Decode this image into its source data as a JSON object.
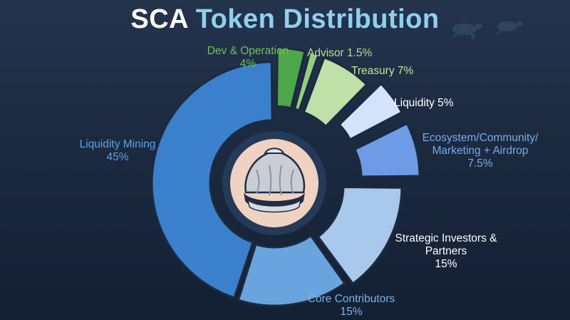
{
  "title": {
    "part1": "SCA",
    "part2": "Token Distribution"
  },
  "colors": {
    "title_white": "#ffffff",
    "title_blue": "#8fd0ef",
    "ring_dark": "#243a58",
    "center_disc": "#f0d2c2"
  },
  "chart_data": {
    "type": "pie",
    "variant": "exploded donut",
    "title": "SCA Token Distribution",
    "slices": [
      {
        "name": "Dev & Operation",
        "value": 4,
        "label": "4%",
        "color": "#4ea64a"
      },
      {
        "name": "Advisor",
        "value": 1.5,
        "label": "1.5%",
        "color": "#95cf7e"
      },
      {
        "name": "Treasury",
        "value": 7,
        "label": "7%",
        "color": "#bfe0a6"
      },
      {
        "name": "Liquidity",
        "value": 5,
        "label": "5%",
        "color": "#d4e2fb"
      },
      {
        "name": "Ecosystem/Community/ Marketing + Airdrop",
        "value": 7.5,
        "label": "7.5%",
        "color": "#6e9be6"
      },
      {
        "name": "Strategic Investors & Partners",
        "value": 15,
        "label": "15%",
        "color": "#a8c8ec"
      },
      {
        "name": "Core Contributors",
        "value": 15,
        "label": "15%",
        "color": "#6aa4de"
      },
      {
        "name": "Liquidity Mining",
        "value": 45,
        "label": "45%",
        "color": "#3a80cc"
      }
    ]
  },
  "labels": {
    "dev": {
      "line1": "Dev & Operation",
      "line2": "4%",
      "color": "#6fc25a"
    },
    "advisor": {
      "text": "Advisor 1.5%",
      "color": "#aee08e"
    },
    "treasury": {
      "text": "Treasury 7%",
      "color": "#bfe6a3"
    },
    "liquidity": {
      "text": "Liquidity  5%",
      "color": "#ffffff"
    },
    "ecosystem": {
      "line1": "Ecosystem/Community/",
      "line2": "Marketing + Airdrop",
      "line3": "7.5%",
      "color": "#79a9ec"
    },
    "strategic": {
      "line1": "Strategic Investors &",
      "line2": "Partners",
      "line3": "15%",
      "color": "#ffffff"
    },
    "core": {
      "line1": "Core Contributors",
      "line2": "15%",
      "color": "#7db2ea"
    },
    "mining": {
      "line1": "Liquidity Mining",
      "line2": "45%",
      "color": "#5ba0e6"
    }
  }
}
